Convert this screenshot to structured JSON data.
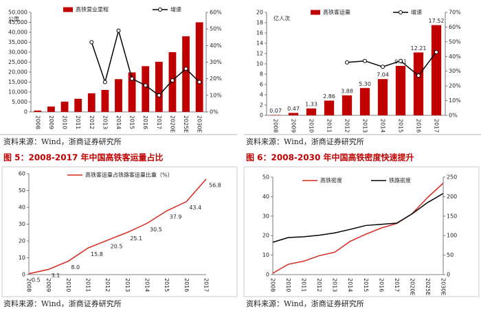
{
  "chart_data": [
    {
      "type": "bar",
      "y_unit": "公里",
      "categories": [
        "2008",
        "2009",
        "2010",
        "2011",
        "2012",
        "2013",
        "2014",
        "2015",
        "2016",
        "2017",
        "2020E",
        "2025E",
        "2030E"
      ],
      "series": [
        {
          "name": "高铁营业里程",
          "type": "bar",
          "color": "#c00000",
          "values": [
            672,
            2699,
            5133,
            6601,
            9356,
            11028,
            16456,
            19838,
            22980,
            25164,
            30000,
            38000,
            45000
          ]
        },
        {
          "name": "增速",
          "type": "line",
          "axis": "y2",
          "color": "#000000",
          "markers": true,
          "values": [
            null,
            null,
            null,
            null,
            42,
            18,
            49,
            20,
            16,
            10,
            19,
            26,
            18
          ]
        }
      ],
      "ylim": [
        0,
        50000
      ],
      "yticks": [
        0,
        {
          "value": 5000,
          "label": "5,000"
        },
        {
          "value": 10000,
          "label": "10,000"
        },
        {
          "value": 15000,
          "label": "15,000"
        },
        {
          "value": 20000,
          "label": "20,000"
        },
        {
          "value": 25000,
          "label": "25,000"
        },
        {
          "value": 30000,
          "label": "30,000"
        },
        {
          "value": 35000,
          "label": "35,000"
        },
        {
          "value": 40000,
          "label": "40,000"
        },
        {
          "value": 45000,
          "label": "45,000"
        },
        {
          "value": 50000,
          "label": "50,000"
        }
      ],
      "y2lim": [
        0,
        60
      ],
      "y2ticks": [
        {
          "value": 0,
          "label": "0%"
        },
        {
          "value": 10,
          "label": "10%"
        },
        {
          "value": 20,
          "label": "20%"
        },
        {
          "value": 30,
          "label": "30%"
        },
        {
          "value": 40,
          "label": "40%"
        },
        {
          "value": 50,
          "label": "50%"
        },
        {
          "value": 60,
          "label": "60%"
        }
      ],
      "source": "资料来源：Wind，浙商证券研究所"
    },
    {
      "type": "bar",
      "y_unit": "亿人次",
      "categories": [
        "2008",
        "2009",
        "2010",
        "2011",
        "2012",
        "2013",
        "2014",
        "2015",
        "2016",
        "2017"
      ],
      "series": [
        {
          "name": "高铁客运量",
          "type": "bar",
          "color": "#c00000",
          "values": [
            0.07,
            0.47,
            1.33,
            2.86,
            3.88,
            5.3,
            7.04,
            9.61,
            12.21,
            17.52
          ],
          "value_labels": [
            "0.07",
            "0.47",
            "1.33",
            "2.86",
            "3.88",
            "5.30",
            "7.04",
            "9.61",
            "12.21",
            "17.52"
          ]
        },
        {
          "name": "增速",
          "type": "line",
          "axis": "y2",
          "color": "#000000",
          "markers": true,
          "values": [
            null,
            null,
            null,
            null,
            36,
            37,
            33,
            37,
            27,
            43
          ]
        }
      ],
      "ylim": [
        0,
        20
      ],
      "yticks": [
        0,
        2,
        4,
        6,
        8,
        10,
        12,
        14,
        16,
        18,
        20
      ],
      "y2lim": [
        0,
        70
      ],
      "y2ticks": [
        {
          "value": 0,
          "label": "0%"
        },
        {
          "value": 10,
          "label": "10%"
        },
        {
          "value": 20,
          "label": "20%"
        },
        {
          "value": 30,
          "label": "30%"
        },
        {
          "value": 40,
          "label": "40%"
        },
        {
          "value": 50,
          "label": "50%"
        },
        {
          "value": 60,
          "label": "60%"
        },
        {
          "value": 70,
          "label": "70%"
        }
      ],
      "source": "资料来源：Wind，浙商证券研究所"
    },
    {
      "type": "line",
      "categories": [
        "2008",
        "2009",
        "2010",
        "2011",
        "2012",
        "2013",
        "2014",
        "2015",
        "2016",
        "2017"
      ],
      "series": [
        {
          "name": "高铁客运量占铁路客运量比重（%）",
          "color": "#d9261c",
          "values": [
            0.5,
            3.1,
            8.0,
            15.8,
            20.5,
            25.1,
            30.5,
            37.9,
            43.4,
            56.8
          ],
          "value_labels": [
            "0.5",
            "3.1",
            "8.0",
            "15.8",
            "20.5",
            "25.1",
            "30.5",
            "37.9",
            "43.4",
            "56.8"
          ]
        }
      ],
      "ylim": [
        0,
        60
      ],
      "yticks": [
        0,
        10,
        20,
        30,
        40,
        50,
        60
      ],
      "source": "资料来源：Wind，浙商证券研究所"
    },
    {
      "type": "line",
      "categories": [
        "2008",
        "2010",
        "2011",
        "2012",
        "2013",
        "2014",
        "2015",
        "2016",
        "2017",
        "2020E",
        "2025E",
        "2030E"
      ],
      "series": [
        {
          "name": "高铁密度",
          "color": "#d9261c",
          "values": [
            0.7,
            5.3,
            6.9,
            9.7,
            11.5,
            17.1,
            20.7,
            23.9,
            26.2,
            31.3,
            39.6,
            46.9
          ]
        },
        {
          "name": "铁路密度",
          "color": "#000000",
          "axis": "y2",
          "values": [
            83,
            95,
            97,
            101,
            107,
            116,
            126,
            129,
            132,
            156,
            185,
            208
          ]
        }
      ],
      "ylim": [
        0,
        50
      ],
      "yticks": [
        0,
        10,
        20,
        30,
        40,
        50
      ],
      "y2lim": [
        0,
        250
      ],
      "y2ticks": [
        0,
        50,
        100,
        150,
        200,
        250
      ],
      "source": "资料来源：Wind，浙商证券研究所"
    }
  ],
  "captions": [
    "图 5：2008-2017 年中国高铁客运量占比",
    "图 6：2008-2030 年中国高铁密度快速提升"
  ]
}
